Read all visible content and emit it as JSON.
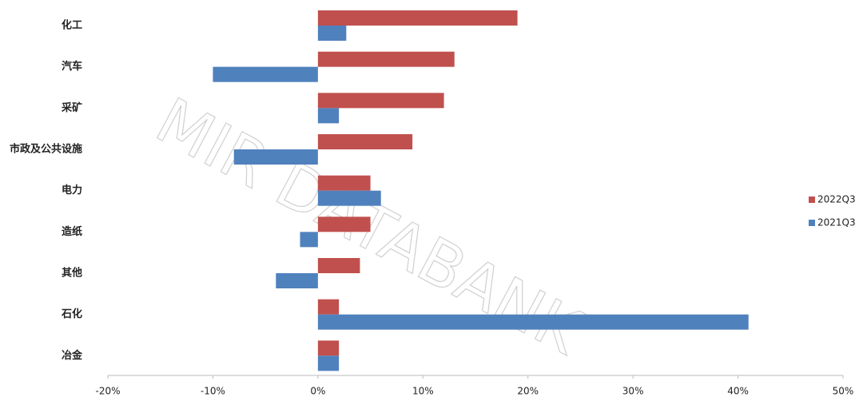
{
  "chart_data": {
    "type": "bar",
    "orientation": "horizontal",
    "watermark": "MIR DATABANK",
    "categories": [
      "化工",
      "汽车",
      "采矿",
      "市政及公共设施",
      "电力",
      "造纸",
      "其他",
      "石化",
      "冶金"
    ],
    "series": [
      {
        "name": "2022Q3",
        "color": "#c0504d",
        "values": [
          19,
          13,
          12,
          9,
          5,
          5,
          4,
          2,
          2
        ]
      },
      {
        "name": "2021Q3",
        "color": "#4f81bd",
        "values": [
          2.7,
          -10,
          2,
          -8,
          6,
          -1.7,
          -4,
          41,
          2
        ]
      }
    ],
    "xlim": [
      -20,
      50
    ],
    "xticks": [
      {
        "value": -20,
        "label": "-20%"
      },
      {
        "value": -10,
        "label": "-10%"
      },
      {
        "value": 0,
        "label": "0%"
      },
      {
        "value": 10,
        "label": "10%"
      },
      {
        "value": 20,
        "label": "20%"
      },
      {
        "value": 30,
        "label": "30%"
      },
      {
        "value": 40,
        "label": "40%"
      },
      {
        "value": 50,
        "label": "50%"
      }
    ],
    "grid": false,
    "legend": "right"
  }
}
